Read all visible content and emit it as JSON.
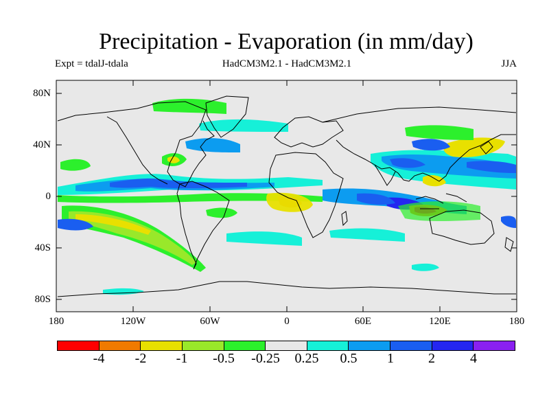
{
  "title": "Precipitation - Evaporation (in mm/day)",
  "subtitle_left": "Expt = tdalJ-tdala",
  "subtitle_center": "HadCM3M2.1 - HadCM3M2.1",
  "subtitle_right": "JJA",
  "y_axis_labels": [
    "80N",
    "40N",
    "0",
    "40S",
    "80S"
  ],
  "x_axis_labels": [
    "180",
    "120W",
    "60W",
    "0",
    "60E",
    "120E",
    "180"
  ],
  "colorbar": {
    "colors": [
      "#ff0000",
      "#f07a00",
      "#e8e000",
      "#99e82a",
      "#2cf02c",
      "#e8e8e8",
      "#16f0d8",
      "#0c9cf0",
      "#1a5ef0",
      "#2426f0",
      "#8a20f0"
    ],
    "labels": [
      "-4",
      "-2",
      "-1",
      "-0.5",
      "-0.25",
      "0.25",
      "0.5",
      "1",
      "2",
      "4"
    ]
  },
  "colors": {
    "background": "#e8e8e8",
    "coast": "#000000"
  }
}
